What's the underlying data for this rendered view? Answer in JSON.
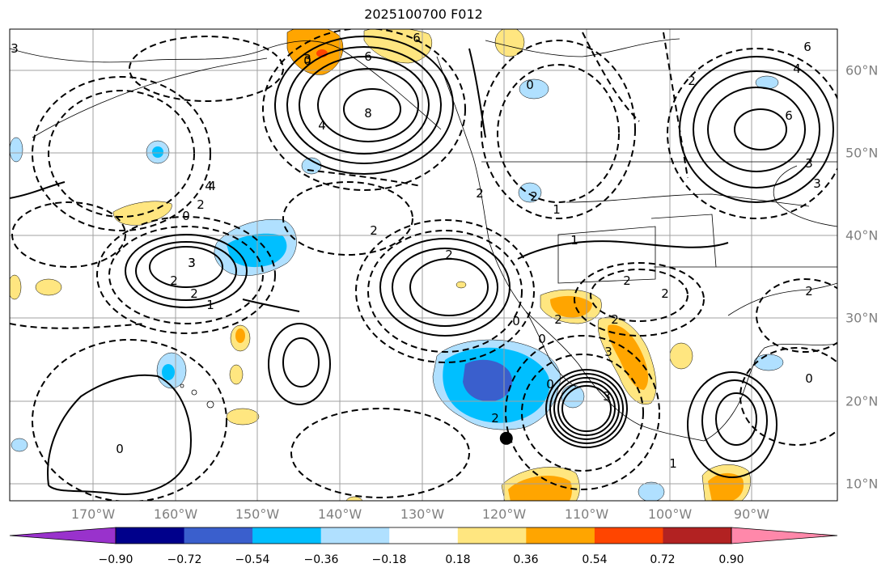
{
  "title": "2025100700 F012",
  "map": {
    "projection": "plate-carree",
    "lon_range": [
      -180,
      -80
    ],
    "lat_range": [
      8,
      65
    ],
    "grid": true,
    "lon_labels": [
      "170°W",
      "160°W",
      "150°W",
      "140°W",
      "130°W",
      "120°W",
      "110°W",
      "100°W",
      "90°W"
    ],
    "lat_labels": [
      "60°N",
      "50°N",
      "40°N",
      "30°N",
      "20°N",
      "10°N"
    ],
    "marker": {
      "lon": -120,
      "lat": 15.5,
      "color": "#000000"
    },
    "contour_labels": [
      "3",
      "3",
      "6",
      "6",
      "8",
      "4",
      "4",
      "2",
      "0",
      "2",
      "6",
      "3",
      "6",
      "4",
      "2",
      "0",
      "4",
      "2",
      "3",
      "2",
      "1",
      "3",
      "2",
      "2",
      "1",
      "2",
      "2",
      "1",
      "2",
      "0",
      "0",
      "3",
      "0",
      "3",
      "2",
      "2",
      "2",
      "0",
      "1",
      "0",
      "2",
      "3",
      "0"
    ]
  },
  "colorbar": {
    "ticks": [
      "−0.90",
      "−0.72",
      "−0.54",
      "−0.36",
      "−0.18",
      "0.18",
      "0.36",
      "0.54",
      "0.72",
      "0.90"
    ],
    "colors": [
      "#9932cc",
      "#00008b",
      "#3a5fcd",
      "#00bfff",
      "#b0e0ff",
      "#ffffff",
      "#ffe680",
      "#ffa500",
      "#ff4500",
      "#b22222",
      "#ff88aa"
    ]
  }
}
